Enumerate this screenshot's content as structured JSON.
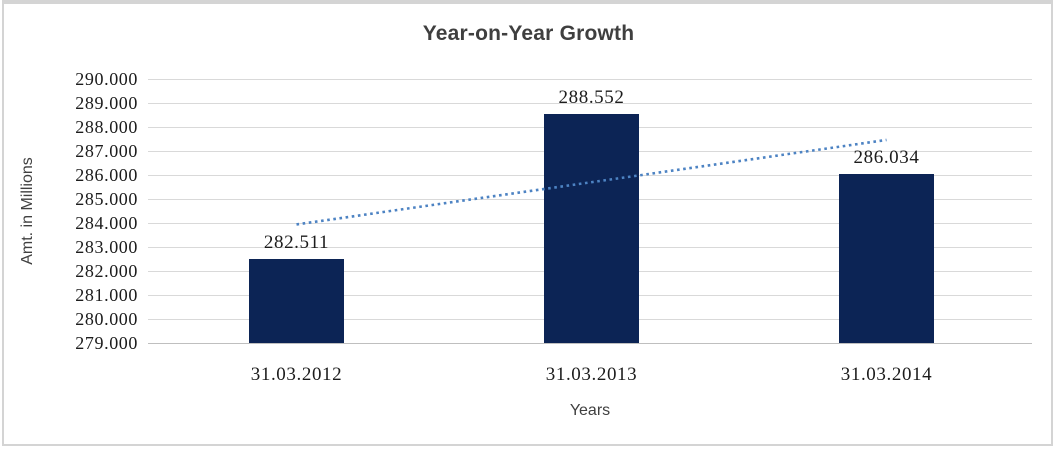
{
  "frame": {
    "background": "#ffffff",
    "border_color": "#d4d4d4"
  },
  "chart_data": {
    "type": "bar",
    "title": "Year-on-Year Growth",
    "xlabel": "Years",
    "ylabel": "Amt. in Millions",
    "categories": [
      "31.03.2012",
      "31.03.2013",
      "31.03.2014"
    ],
    "values": [
      282.511,
      288.552,
      286.034
    ],
    "data_labels": [
      "282.511",
      "288.552",
      "286.034"
    ],
    "ylim": [
      279,
      290
    ],
    "ytick_step": 1,
    "ytick_labels": [
      "290.000",
      "289.000",
      "288.000",
      "287.000",
      "286.000",
      "285.000",
      "284.000",
      "283.000",
      "282.000",
      "281.000",
      "280.000",
      "279.000"
    ],
    "grid": true,
    "legend": "none",
    "bar_color": "#0c2455",
    "trendline": {
      "type": "linear",
      "style": "dotted",
      "color": "#4d83c3",
      "start_value": 283.94,
      "end_value": 287.46
    },
    "colors": {
      "grid": "#d9d9d9",
      "axis_line": "#bfbfbf",
      "title": "#3f3f3f",
      "tick": "#1c1c1c",
      "axis_title": "#404040"
    }
  }
}
